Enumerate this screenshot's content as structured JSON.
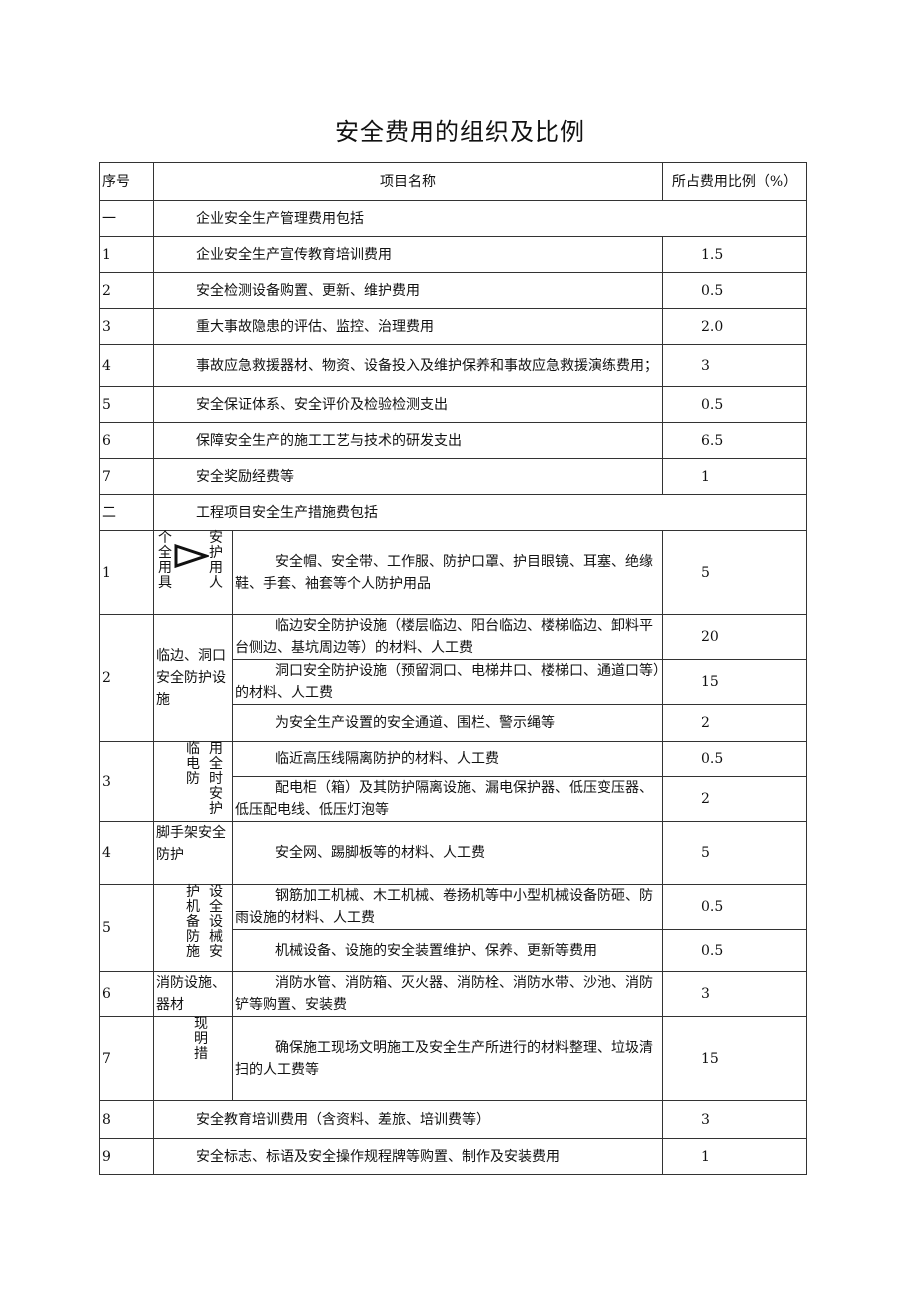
{
  "title": "安全费用的组织及比例",
  "headers": {
    "no": "序号",
    "name": "项目名称",
    "ratio": "所占费用比例（%）"
  },
  "section1": {
    "no": "一",
    "label": "企业安全生产管理费用包括",
    "rows": [
      {
        "no": "1",
        "name": "企业安全生产宣传教育培训费用",
        "ratio": "1.5"
      },
      {
        "no": "2",
        "name": "安全检测设备购置、更新、维护费用",
        "ratio": "0.5"
      },
      {
        "no": "3",
        "name": "重大事故隐患的评估、监控、治理费用",
        "ratio": "2.0"
      },
      {
        "no": "4",
        "name": "事故应急救援器材、物资、设备投入及维护保养和事故应急救援演练费用；",
        "ratio": "3"
      },
      {
        "no": "5",
        "name": "安全保证体系、安全评价及检验检测支出",
        "ratio": "0.5"
      },
      {
        "no": "6",
        "name": "保障安全生产的施工工艺与技术的研发支出",
        "ratio": "6.5"
      },
      {
        "no": "7",
        "name": "安全奖励经费等",
        "ratio": "1"
      }
    ]
  },
  "section2": {
    "no": "二",
    "label": "工程项目安全生产措施费包括",
    "groups": [
      {
        "no": "1",
        "cat_left": "个全用具",
        "cat_right": "安护用人",
        "icon": "triangle-arrow-icon",
        "items": [
          {
            "name": "安全帽、安全带、工作服、防护口罩、护目眼镜、耳塞、绝缘鞋、手套、袖套等个人防护用品",
            "ratio": "5"
          }
        ]
      },
      {
        "no": "2",
        "category": "临边、洞口安全防护设施",
        "items": [
          {
            "name": "临边安全防护设施（楼层临边、阳台临边、楼梯临边、卸料平台侧边、基坑周边等）的材料、人工费",
            "ratio": "20"
          },
          {
            "name": "洞口安全防护设施（预留洞口、电梯井口、楼梯口、通道口等）的材料、人工费",
            "ratio": "15"
          },
          {
            "name": "为安全生产设置的安全通道、围栏、警示绳等",
            "ratio": "2"
          }
        ]
      },
      {
        "no": "3",
        "cat_left": "临电防",
        "cat_right": "用全时安护",
        "items": [
          {
            "name": "临近高压线隔离防护的材料、人工费",
            "ratio": "0.5"
          },
          {
            "name": "配电柜（箱）及其防护隔离设施、漏电保护器、低压变压器、低压配电线、低压灯泡等",
            "ratio": "2"
          }
        ]
      },
      {
        "no": "4",
        "category": "脚手架安全防护",
        "items": [
          {
            "name": "安全网、踢脚板等的材料、人工费",
            "ratio": "5"
          }
        ]
      },
      {
        "no": "5",
        "cat_left": "护机备防施",
        "cat_right": "设全设械安",
        "items": [
          {
            "name": "钢筋加工机械、木工机械、卷扬机等中小型机械设备防砸、防雨设施的材料、人工费",
            "ratio": "0.5"
          },
          {
            "name": "机械设备、设施的安全装置维护、保养、更新等费用",
            "ratio": "0.5"
          }
        ]
      },
      {
        "no": "6",
        "category": "消防设施、器材",
        "items": [
          {
            "name": "消防水管、消防箱、灭火器、消防栓、消防水带、沙池、消防铲等购置、安装费",
            "ratio": "3"
          }
        ]
      },
      {
        "no": "7",
        "cat_right": "现明措",
        "items": [
          {
            "name": "确保施工现场文明施工及安全生产所进行的材料整理、垃圾清扫的人工费等",
            "ratio": "15"
          }
        ]
      },
      {
        "no": "8",
        "name": "安全教育培训费用（含资料、差旅、培训费等）",
        "ratio": "3"
      },
      {
        "no": "9",
        "name": "安全标志、标语及安全操作规程牌等购置、制作及安装费用",
        "ratio": "1"
      }
    ]
  }
}
